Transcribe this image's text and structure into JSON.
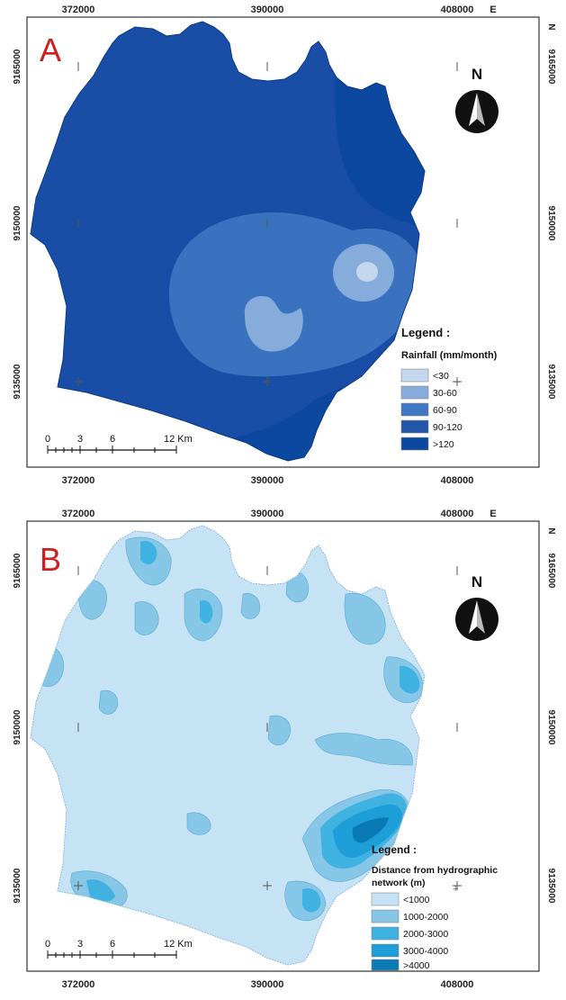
{
  "panels": [
    {
      "letter": "A",
      "x_ticks": [
        "372000",
        "390000",
        "408000"
      ],
      "x_unit": "E",
      "y_ticks": [
        "9165000",
        "9150000",
        "9135000"
      ],
      "y_unit": "N",
      "north": "N",
      "legend_heading": "Legend :",
      "legend_title_lines": [
        "Rainfall (mm/month)"
      ],
      "legend_items": [
        {
          "label": "<30",
          "color": "#c5d7ee"
        },
        {
          "label": "30-60",
          "color": "#86acdc"
        },
        {
          "label": "60-90",
          "color": "#3e78c4"
        },
        {
          "label": "90-120",
          "color": "#2256a8"
        },
        {
          "label": ">120",
          "color": "#0c47a0"
        }
      ],
      "scale_ticks": [
        "0",
        "3",
        "6",
        "12 Km"
      ]
    },
    {
      "letter": "B",
      "x_ticks": [
        "372000",
        "390000",
        "408000"
      ],
      "x_unit": "E",
      "y_ticks": [
        "9165000",
        "9150000",
        "9135000"
      ],
      "y_unit": "N",
      "north": "N",
      "legend_heading": "Legend :",
      "legend_title_lines": [
        "Distance from hydrographic",
        "network (m)"
      ],
      "legend_items": [
        {
          "label": "<1000",
          "color": "#c6e3f5"
        },
        {
          "label": "1000-2000",
          "color": "#86c6e6"
        },
        {
          "label": "2000-3000",
          "color": "#3fb2e2"
        },
        {
          "label": "3000-4000",
          "color": "#1d9ed9"
        },
        {
          "label": ">4000",
          "color": "#0a7ab4"
        }
      ],
      "scale_ticks": [
        "0",
        "3",
        "6",
        "12 Km"
      ]
    }
  ],
  "colors": {
    "letter": "#cc1f1f",
    "frame": "#333333",
    "river_line": "#2e3a5e"
  }
}
